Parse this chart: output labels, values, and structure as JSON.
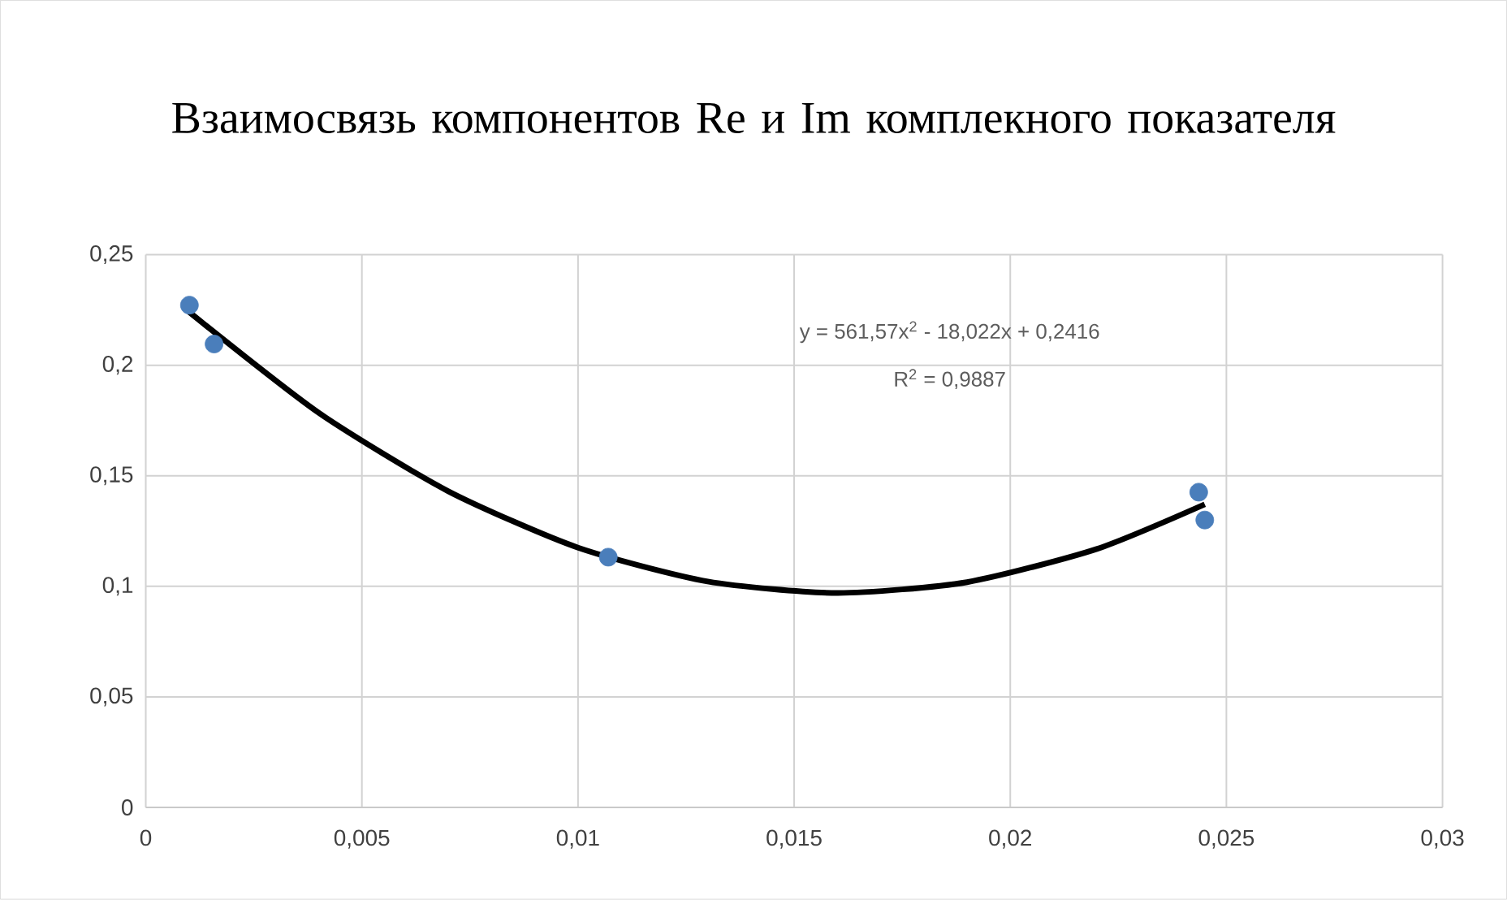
{
  "chart_data": {
    "type": "scatter",
    "title": "Взаимосвязь компонентов Re и Im комплекного показателя",
    "series": [
      {
        "color": "#4a7ebb",
        "marker": "circle",
        "x": [
          0.00101,
          0.00158,
          0.0107,
          0.02436,
          0.0245
        ],
        "values": [
          0.2272,
          0.2096,
          0.1132,
          0.1426,
          0.13
        ]
      },
      {
        "type": "line",
        "color": "#000000",
        "marker": "none",
        "x": [
          0.001,
          0.004,
          0.007,
          0.01,
          0.013,
          0.016,
          0.019,
          0.022,
          0.0245
        ],
        "values": [
          0.2241,
          0.1785,
          0.143,
          0.1175,
          0.1022,
          0.097,
          0.1019,
          0.1169,
          0.1371
        ]
      }
    ],
    "annotations": [
      "y = 561,57x$^{2}$ - 18,022x + 0,2416",
      "R$^{2}$ = 0,9887"
    ],
    "xlim": [
      0,
      0.03
    ],
    "ylim": [
      0,
      0.25
    ],
    "xticks": [
      0,
      {
        "value": 0.005,
        "label": "0,005"
      },
      {
        "value": 0.01,
        "label": "0,01"
      },
      {
        "value": 0.015,
        "label": "0,015"
      },
      {
        "value": 0.02,
        "label": "0,02"
      },
      {
        "value": 0.025,
        "label": "0,025"
      },
      {
        "value": 0.03,
        "label": "0,03"
      }
    ],
    "yticks": [
      0,
      {
        "value": 0.05,
        "label": "0,05"
      },
      {
        "value": 0.1,
        "label": "0,1"
      },
      {
        "value": 0.15,
        "label": "0,15"
      },
      {
        "value": 0.2,
        "label": "0,2"
      },
      {
        "value": 0.25,
        "label": "0,25"
      }
    ],
    "grid": true
  }
}
